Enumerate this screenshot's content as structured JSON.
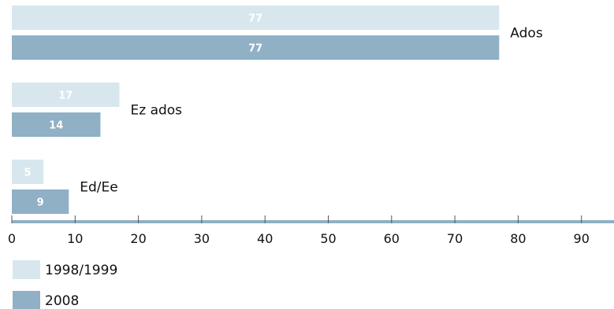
{
  "chart_data": {
    "type": "bar",
    "orientation": "horizontal",
    "categories": [
      "Ados",
      "Ez ados",
      "Ed/Ee"
    ],
    "series": [
      {
        "name": "1998/1999",
        "values": [
          77,
          17,
          5
        ],
        "color": "#d8e7ee"
      },
      {
        "name": "2008",
        "values": [
          77,
          14,
          9
        ],
        "color": "#8fb0c5"
      }
    ],
    "xlim": [
      0,
      95
    ],
    "x_ticks": [
      0,
      10,
      20,
      30,
      40,
      50,
      60,
      70,
      80,
      90
    ],
    "axis_color": "#8fb0c5",
    "grid": false,
    "legend_position": "bottom-left",
    "title": "",
    "xlabel": "",
    "ylabel": ""
  }
}
